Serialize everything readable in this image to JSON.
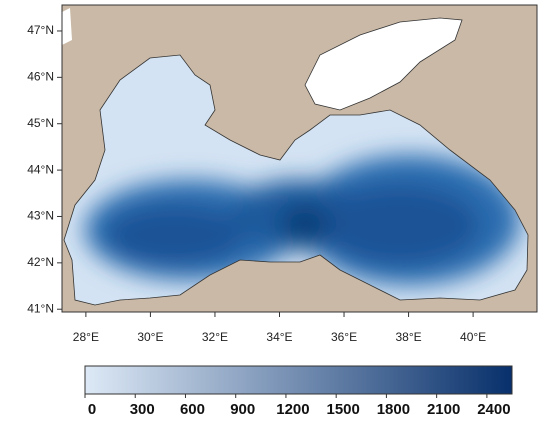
{
  "map": {
    "xlim": [
      27.26,
      41.98
    ],
    "ylim": [
      40.94,
      47.56
    ],
    "lon_ticks": [
      {
        "value": 28,
        "label": "28°E"
      },
      {
        "value": 30,
        "label": "30°E"
      },
      {
        "value": 32,
        "label": "32°E"
      },
      {
        "value": 34,
        "label": "34°E"
      },
      {
        "value": 36,
        "label": "36°E"
      },
      {
        "value": 38,
        "label": "38°E"
      },
      {
        "value": 40,
        "label": "40°E"
      }
    ],
    "lat_ticks": [
      {
        "value": 41,
        "label": "41°N"
      },
      {
        "value": 42,
        "label": "42°N"
      },
      {
        "value": 43,
        "label": "43°N"
      },
      {
        "value": 44,
        "label": "44°N"
      },
      {
        "value": 45,
        "label": "45°N"
      },
      {
        "value": 46,
        "label": "46°N"
      },
      {
        "value": 47,
        "label": "47°N"
      }
    ],
    "colorbar": {
      "lim": [
        0,
        2550
      ],
      "ticks": [
        0,
        300,
        600,
        900,
        1200,
        1500,
        1800,
        2100,
        2400
      ],
      "colors": [
        "#dde9f6",
        "#08306b"
      ]
    }
  }
}
